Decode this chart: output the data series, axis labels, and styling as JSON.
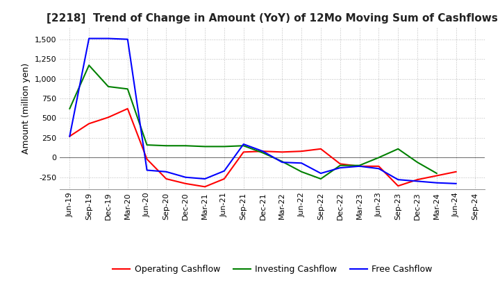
{
  "title": "[2218]  Trend of Change in Amount (YoY) of 12Mo Moving Sum of Cashflows",
  "ylabel": "Amount (million yen)",
  "x_labels": [
    "Jun-19",
    "Sep-19",
    "Dec-19",
    "Mar-20",
    "Jun-20",
    "Sep-20",
    "Dec-20",
    "Mar-21",
    "Jun-21",
    "Sep-21",
    "Dec-21",
    "Mar-22",
    "Jun-22",
    "Sep-22",
    "Dec-22",
    "Mar-23",
    "Jun-23",
    "Sep-23",
    "Dec-23",
    "Mar-24",
    "Jun-24",
    "Sep-24"
  ],
  "operating": [
    270,
    430,
    510,
    620,
    -20,
    -270,
    -330,
    -370,
    -270,
    70,
    80,
    70,
    80,
    110,
    -80,
    -110,
    -110,
    -360,
    -280,
    -230,
    -180,
    null
  ],
  "investing": [
    620,
    1170,
    900,
    870,
    160,
    150,
    150,
    140,
    140,
    150,
    60,
    -50,
    -180,
    -270,
    -100,
    -100,
    0,
    110,
    -60,
    -200,
    null,
    null
  ],
  "free": [
    270,
    1510,
    1510,
    1500,
    -160,
    -180,
    -250,
    -270,
    -170,
    170,
    80,
    -60,
    -70,
    -200,
    -130,
    -110,
    -140,
    -280,
    -300,
    -320,
    -330,
    null
  ],
  "operating_color": "#ff0000",
  "investing_color": "#008000",
  "free_color": "#0000ff",
  "ylim": [
    -400,
    1650
  ],
  "yticks": [
    -250,
    0,
    250,
    500,
    750,
    1000,
    1250,
    1500
  ],
  "background_color": "#ffffff",
  "grid_color": "#bbbbbb",
  "title_color": "#222222",
  "title_fontsize": 11,
  "label_fontsize": 9,
  "tick_fontsize": 8,
  "legend_fontsize": 9,
  "linewidth": 1.5
}
